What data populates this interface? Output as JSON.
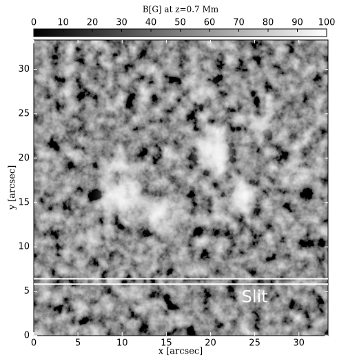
{
  "chart_data": {
    "type": "heatmap",
    "colorbar": {
      "label": "B[G] at z=0.7 Mm",
      "lim": [
        0,
        100
      ],
      "ticks": [
        0,
        10,
        20,
        30,
        40,
        50,
        60,
        70,
        80,
        90,
        100
      ],
      "colormap": "gray"
    },
    "xlabel": "x [arcsec]",
    "ylabel": "y [arcsec]",
    "xlim": [
      0,
      33.3
    ],
    "ylim": [
      0,
      33.3
    ],
    "xticks": [
      0,
      5,
      10,
      15,
      20,
      25,
      30
    ],
    "yticks": [
      0,
      5,
      10,
      15,
      20,
      25,
      30
    ],
    "slit": {
      "y": [
        5.8,
        6.4
      ],
      "color": "#ffffff"
    },
    "annotations": [
      {
        "text": "Slit",
        "x": 25,
        "y": 4.3
      }
    ]
  }
}
